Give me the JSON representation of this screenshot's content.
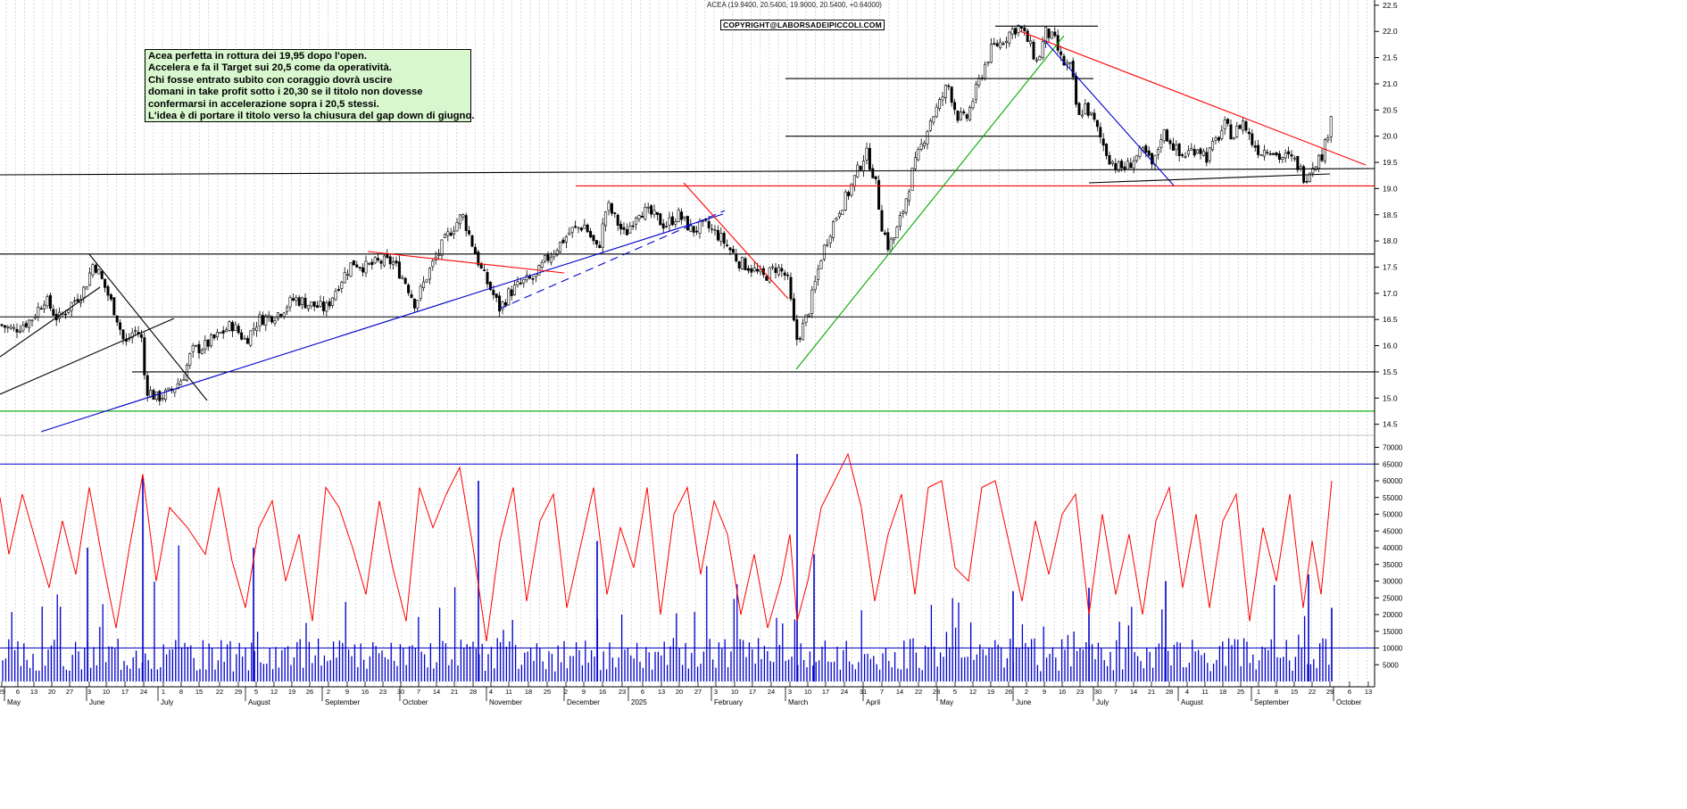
{
  "header": {
    "title": "ACEA (19.9400, 20.5400, 19.9000, 20.5400, +0.64000)"
  },
  "copyright": "COPYRIGHT@LABORSADEIPICCOLI.COM",
  "note": {
    "lines": [
      "Acea perfetta in rottura dei 19,95 dopo l'open.",
      "Accelera e fa il Target sui 20,5 come da operatività.",
      "Chi fosse entrato subito con coraggio dovrà uscire",
      "domani in take profit sotto i 20,30 se il titolo non dovesse",
      "confermarsi in accelerazione sopra i 20,5 stessi.",
      "L'idea è di portare il titolo verso la chiusura del gap down di giugno."
    ]
  },
  "chart_data": [
    {
      "type": "candlestick",
      "title": "",
      "ylim": [
        14.0,
        22.6
      ],
      "y_ticks": [
        14.5,
        15.0,
        15.5,
        16.0,
        16.5,
        17.0,
        17.5,
        18.0,
        18.5,
        19.0,
        19.5,
        20.0,
        20.5,
        21.0,
        21.5,
        22.0,
        22.5
      ],
      "y_tick_labels": [
        "14.5",
        "15.0",
        "15.5",
        "16.0",
        "16.5",
        "17.0",
        "17.5",
        "18.0",
        "18.5",
        "19.0",
        "19.5",
        "20.0",
        "20.5",
        "21.0",
        "21.5",
        "22.0",
        "22.5"
      ],
      "last_ohlc": {
        "open": 19.94,
        "high": 20.54,
        "low": 19.9,
        "close": 20.54,
        "change": 0.64
      },
      "price_path": [
        [
          0,
          16.4
        ],
        [
          15,
          16.3
        ],
        [
          35,
          16.5
        ],
        [
          50,
          16.9
        ],
        [
          65,
          16.5
        ],
        [
          80,
          16.8
        ],
        [
          95,
          17.1
        ],
        [
          105,
          17.6
        ],
        [
          118,
          17.1
        ],
        [
          130,
          16.6
        ],
        [
          140,
          16.0
        ],
        [
          150,
          16.3
        ],
        [
          158,
          16.2
        ],
        [
          163,
          15.2
        ],
        [
          175,
          15.0
        ],
        [
          190,
          15.1
        ],
        [
          205,
          15.4
        ],
        [
          215,
          15.9
        ],
        [
          230,
          16.0
        ],
        [
          245,
          16.2
        ],
        [
          260,
          16.4
        ],
        [
          275,
          16.1
        ],
        [
          290,
          16.5
        ],
        [
          310,
          16.6
        ],
        [
          330,
          16.9
        ],
        [
          345,
          16.8
        ],
        [
          365,
          16.7
        ],
        [
          380,
          17.2
        ],
        [
          395,
          17.6
        ],
        [
          410,
          17.5
        ],
        [
          425,
          17.6
        ],
        [
          440,
          17.6
        ],
        [
          455,
          17.2
        ],
        [
          465,
          16.8
        ],
        [
          480,
          17.4
        ],
        [
          495,
          17.9
        ],
        [
          505,
          18.2
        ],
        [
          518,
          18.5
        ],
        [
          528,
          18.0
        ],
        [
          540,
          17.4
        ],
        [
          552,
          17.0
        ],
        [
          560,
          16.7
        ],
        [
          570,
          17.0
        ],
        [
          585,
          17.2
        ],
        [
          600,
          17.3
        ],
        [
          610,
          17.6
        ],
        [
          625,
          17.9
        ],
        [
          640,
          18.2
        ],
        [
          655,
          18.3
        ],
        [
          670,
          17.8
        ],
        [
          680,
          18.7
        ],
        [
          690,
          18.4
        ],
        [
          700,
          18.1
        ],
        [
          715,
          18.6
        ],
        [
          730,
          18.5
        ],
        [
          745,
          18.3
        ],
        [
          760,
          18.5
        ],
        [
          775,
          18.2
        ],
        [
          790,
          18.3
        ],
        [
          805,
          18.1
        ],
        [
          815,
          17.9
        ],
        [
          828,
          17.6
        ],
        [
          840,
          17.5
        ],
        [
          855,
          17.3
        ],
        [
          870,
          17.5
        ],
        [
          882,
          17.3
        ],
        [
          892,
          16.1
        ],
        [
          898,
          16.3
        ],
        [
          905,
          16.6
        ],
        [
          912,
          17.1
        ],
        [
          920,
          17.7
        ],
        [
          930,
          18.2
        ],
        [
          940,
          18.6
        ],
        [
          950,
          18.9
        ],
        [
          960,
          19.3
        ],
        [
          970,
          19.7
        ],
        [
          980,
          19.2
        ],
        [
          988,
          18.3
        ],
        [
          995,
          17.9
        ],
        [
          1003,
          18.1
        ],
        [
          1012,
          18.6
        ],
        [
          1022,
          19.3
        ],
        [
          1032,
          19.8
        ],
        [
          1042,
          20.3
        ],
        [
          1052,
          20.6
        ],
        [
          1062,
          21.0
        ],
        [
          1072,
          20.4
        ],
        [
          1082,
          20.3
        ],
        [
          1092,
          20.8
        ],
        [
          1102,
          21.3
        ],
        [
          1112,
          21.7
        ],
        [
          1122,
          21.8
        ],
        [
          1132,
          22.0
        ],
        [
          1142,
          22.1
        ],
        [
          1152,
          21.8
        ],
        [
          1162,
          21.4
        ],
        [
          1172,
          22.0
        ],
        [
          1182,
          21.8
        ],
        [
          1190,
          21.4
        ],
        [
          1200,
          21.3
        ],
        [
          1208,
          20.3
        ],
        [
          1215,
          20.6
        ],
        [
          1225,
          20.3
        ],
        [
          1232,
          20.0
        ],
        [
          1242,
          19.6
        ],
        [
          1252,
          19.4
        ],
        [
          1262,
          19.4
        ],
        [
          1272,
          19.6
        ],
        [
          1282,
          19.7
        ],
        [
          1292,
          19.4
        ],
        [
          1302,
          20.1
        ],
        [
          1312,
          19.9
        ],
        [
          1322,
          19.6
        ],
        [
          1332,
          19.7
        ],
        [
          1342,
          19.8
        ],
        [
          1352,
          19.6
        ],
        [
          1362,
          19.9
        ],
        [
          1372,
          20.2
        ],
        [
          1382,
          20.0
        ],
        [
          1392,
          20.3
        ],
        [
          1402,
          19.9
        ],
        [
          1412,
          19.7
        ],
        [
          1422,
          19.8
        ],
        [
          1432,
          19.6
        ],
        [
          1442,
          19.6
        ],
        [
          1452,
          19.5
        ],
        [
          1462,
          19.2
        ],
        [
          1472,
          19.5
        ],
        [
          1480,
          19.6
        ],
        [
          1486,
          19.9
        ],
        [
          1492,
          20.54
        ]
      ],
      "horizontal_levels": [
        {
          "value": 19.05,
          "color": "#ff0000"
        },
        {
          "value": 17.75,
          "color": "#000000"
        },
        {
          "value": 16.55,
          "color": "#000000"
        },
        {
          "value": 15.5,
          "color": "#000000"
        },
        {
          "value": 14.75,
          "color": "#00aa00"
        },
        {
          "value": 22.1,
          "color": "#000000"
        },
        {
          "value": 21.1,
          "color": "#000000"
        },
        {
          "value": 20.0,
          "color": "#000000"
        }
      ]
    },
    {
      "type": "bar",
      "title": "",
      "ylim": [
        0,
        72000
      ],
      "y_ticks": [
        5000,
        10000,
        15000,
        20000,
        25000,
        30000,
        35000,
        40000,
        45000,
        50000,
        55000,
        60000,
        65000,
        70000
      ],
      "y_tick_labels": [
        "5000",
        "10000",
        "15000",
        "20000",
        "25000",
        "30000",
        "35000",
        "40000",
        "45000",
        "50000",
        "55000",
        "60000",
        "65000",
        "70000"
      ],
      "reference_lines": [
        65000,
        10000
      ],
      "oscillator_path": [
        [
          0,
          55
        ],
        [
          10,
          38
        ],
        [
          25,
          56
        ],
        [
          40,
          42
        ],
        [
          55,
          28
        ],
        [
          70,
          48
        ],
        [
          85,
          32
        ],
        [
          100,
          58
        ],
        [
          115,
          36
        ],
        [
          130,
          16
        ],
        [
          145,
          40
        ],
        [
          160,
          62
        ],
        [
          175,
          30
        ],
        [
          190,
          52
        ],
        [
          210,
          46
        ],
        [
          230,
          38
        ],
        [
          245,
          58
        ],
        [
          260,
          36
        ],
        [
          275,
          22
        ],
        [
          290,
          46
        ],
        [
          305,
          54
        ],
        [
          320,
          30
        ],
        [
          335,
          44
        ],
        [
          350,
          18
        ],
        [
          365,
          58
        ],
        [
          380,
          52
        ],
        [
          395,
          40
        ],
        [
          410,
          26
        ],
        [
          425,
          54
        ],
        [
          440,
          34
        ],
        [
          455,
          18
        ],
        [
          470,
          58
        ],
        [
          485,
          46
        ],
        [
          500,
          56
        ],
        [
          515,
          64
        ],
        [
          530,
          40
        ],
        [
          545,
          12
        ],
        [
          560,
          42
        ],
        [
          575,
          58
        ],
        [
          590,
          24
        ],
        [
          605,
          48
        ],
        [
          620,
          56
        ],
        [
          635,
          22
        ],
        [
          650,
          40
        ],
        [
          665,
          58
        ],
        [
          680,
          26
        ],
        [
          695,
          46
        ],
        [
          710,
          34
        ],
        [
          725,
          58
        ],
        [
          740,
          20
        ],
        [
          755,
          50
        ],
        [
          770,
          58
        ],
        [
          785,
          32
        ],
        [
          800,
          54
        ],
        [
          815,
          44
        ],
        [
          830,
          20
        ],
        [
          845,
          38
        ],
        [
          860,
          16
        ],
        [
          875,
          30
        ],
        [
          885,
          44
        ],
        [
          893,
          18
        ],
        [
          905,
          30
        ],
        [
          920,
          52
        ],
        [
          935,
          60
        ],
        [
          950,
          68
        ],
        [
          965,
          52
        ],
        [
          980,
          24
        ],
        [
          995,
          44
        ],
        [
          1010,
          56
        ],
        [
          1025,
          26
        ],
        [
          1040,
          58
        ],
        [
          1055,
          60
        ],
        [
          1070,
          34
        ],
        [
          1085,
          30
        ],
        [
          1100,
          58
        ],
        [
          1115,
          60
        ],
        [
          1130,
          42
        ],
        [
          1145,
          24
        ],
        [
          1160,
          48
        ],
        [
          1175,
          32
        ],
        [
          1190,
          50
        ],
        [
          1205,
          56
        ],
        [
          1220,
          20
        ],
        [
          1235,
          50
        ],
        [
          1250,
          26
        ],
        [
          1265,
          44
        ],
        [
          1280,
          20
        ],
        [
          1295,
          48
        ],
        [
          1310,
          58
        ],
        [
          1325,
          28
        ],
        [
          1340,
          50
        ],
        [
          1355,
          22
        ],
        [
          1370,
          48
        ],
        [
          1385,
          56
        ],
        [
          1400,
          18
        ],
        [
          1415,
          46
        ],
        [
          1430,
          30
        ],
        [
          1445,
          56
        ],
        [
          1460,
          22
        ],
        [
          1470,
          42
        ],
        [
          1480,
          26
        ],
        [
          1492,
          60
        ]
      ]
    }
  ],
  "x_axis": {
    "day_labels": [
      [
        2,
        "29"
      ],
      [
        20,
        "6"
      ],
      [
        38,
        "13"
      ],
      [
        58,
        "20"
      ],
      [
        78,
        "27"
      ],
      [
        100,
        "3"
      ],
      [
        119,
        "10"
      ],
      [
        140,
        "17"
      ],
      [
        161,
        "24"
      ],
      [
        183,
        "1"
      ],
      [
        203,
        "8"
      ],
      [
        223,
        "15"
      ],
      [
        246,
        "22"
      ],
      [
        267,
        "29"
      ],
      [
        287,
        "5"
      ],
      [
        307,
        "12"
      ],
      [
        327,
        "19"
      ],
      [
        347,
        "26"
      ],
      [
        368,
        "2"
      ],
      [
        389,
        "9"
      ],
      [
        409,
        "16"
      ],
      [
        429,
        "23"
      ],
      [
        449,
        "30"
      ],
      [
        469,
        "7"
      ],
      [
        489,
        "14"
      ],
      [
        509,
        "21"
      ],
      [
        530,
        "28"
      ],
      [
        550,
        "4"
      ],
      [
        570,
        "11"
      ],
      [
        592,
        "18"
      ],
      [
        613,
        "25"
      ],
      [
        634,
        "2"
      ],
      [
        654,
        "9"
      ],
      [
        675,
        "16"
      ],
      [
        697,
        "23"
      ],
      [
        720,
        "6"
      ],
      [
        741,
        "13"
      ],
      [
        761,
        "20"
      ],
      [
        782,
        "27"
      ],
      [
        802,
        "3"
      ],
      [
        823,
        "10"
      ],
      [
        843,
        "17"
      ],
      [
        864,
        "24"
      ],
      [
        885,
        "3"
      ],
      [
        905,
        "10"
      ],
      [
        925,
        "17"
      ],
      [
        946,
        "24"
      ],
      [
        967,
        "31"
      ],
      [
        988,
        "7"
      ],
      [
        1008,
        "14"
      ],
      [
        1029,
        "22"
      ],
      [
        1049,
        "28"
      ],
      [
        1070,
        "5"
      ],
      [
        1090,
        "12"
      ],
      [
        1110,
        "19"
      ],
      [
        1130,
        "26"
      ],
      [
        1150,
        "2"
      ],
      [
        1170,
        "9"
      ],
      [
        1190,
        "16"
      ],
      [
        1210,
        "23"
      ],
      [
        1230,
        "30"
      ],
      [
        1250,
        "7"
      ],
      [
        1270,
        "14"
      ],
      [
        1290,
        "21"
      ],
      [
        1310,
        "28"
      ],
      [
        1330,
        "4"
      ],
      [
        1350,
        "11"
      ],
      [
        1370,
        "18"
      ],
      [
        1390,
        "25"
      ],
      [
        1410,
        "1"
      ],
      [
        1430,
        "8"
      ],
      [
        1450,
        "15"
      ],
      [
        1470,
        "22"
      ],
      [
        1490,
        "29"
      ],
      [
        1512,
        "6"
      ],
      [
        1533,
        "13"
      ]
    ],
    "month_labels": [
      [
        8,
        "May"
      ],
      [
        100,
        "June"
      ],
      [
        180,
        "July"
      ],
      [
        278,
        "August"
      ],
      [
        364,
        "September"
      ],
      [
        451,
        "October"
      ],
      [
        548,
        "November"
      ],
      [
        635,
        "December"
      ],
      [
        707,
        "2025"
      ],
      [
        800,
        "February"
      ],
      [
        883,
        "March"
      ],
      [
        970,
        "April"
      ],
      [
        1053,
        "May"
      ],
      [
        1138,
        "June"
      ],
      [
        1228,
        "July"
      ],
      [
        1323,
        "August"
      ],
      [
        1405,
        "September"
      ],
      [
        1497,
        "October"
      ]
    ]
  }
}
